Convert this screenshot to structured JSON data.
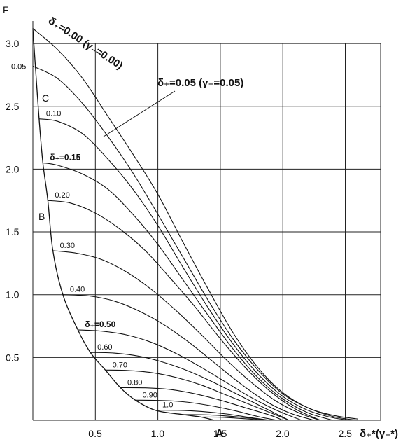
{
  "chart_data": {
    "type": "line",
    "title": "",
    "ylabel": "F",
    "xlabel": "δ₊*(γ₋*)",
    "xlim": [
      0,
      2.9
    ],
    "ylim": [
      0,
      3.2
    ],
    "xticks": [
      "0.5",
      "1.0",
      "1.5",
      "2.0",
      "2.5"
    ],
    "yticks": [
      "0.5",
      "1.0",
      "1.5",
      "2.0",
      "2.5",
      "3.0"
    ],
    "grid": true,
    "series": [
      {
        "name": "δ₊=0.00 (γ₋=0.00)",
        "label": "δ₊=0.00 (γ₋=0.00)",
        "x": [
          0,
          0.2,
          0.4,
          0.6,
          0.8,
          1.0,
          1.2,
          1.4,
          1.6,
          1.8,
          2.0,
          2.2,
          2.4,
          2.6
        ],
        "y": [
          3.12,
          2.95,
          2.72,
          2.42,
          2.12,
          1.8,
          1.42,
          1.05,
          0.7,
          0.42,
          0.22,
          0.1,
          0.04,
          0.01
        ]
      },
      {
        "name": "δ₊=0.05 (γ₋=0.05)",
        "label": "0.05",
        "x": [
          0,
          0.2,
          0.4,
          0.6,
          0.8,
          1.0,
          1.2,
          1.4,
          1.6,
          1.8,
          2.0,
          2.2,
          2.4,
          2.6
        ],
        "y": [
          2.82,
          2.72,
          2.52,
          2.26,
          1.97,
          1.64,
          1.3,
          0.96,
          0.65,
          0.4,
          0.21,
          0.1,
          0.03,
          0.0
        ]
      },
      {
        "name": "0.10",
        "label": "0.10",
        "x": [
          0.05,
          0.2,
          0.4,
          0.6,
          0.8,
          1.0,
          1.2,
          1.4,
          1.6,
          1.8,
          2.0,
          2.2,
          2.4,
          2.55
        ],
        "y": [
          2.4,
          2.38,
          2.28,
          2.08,
          1.84,
          1.55,
          1.22,
          0.9,
          0.61,
          0.37,
          0.19,
          0.08,
          0.02,
          0.0
        ]
      },
      {
        "name": "δ₊=0.15",
        "label": "δ₊=0.15",
        "x": [
          0.08,
          0.2,
          0.4,
          0.6,
          0.8,
          1.0,
          1.2,
          1.4,
          1.6,
          1.8,
          2.0,
          2.2,
          2.4
        ],
        "y": [
          2.05,
          2.03,
          1.96,
          1.84,
          1.64,
          1.4,
          1.12,
          0.84,
          0.57,
          0.34,
          0.17,
          0.06,
          0.0
        ]
      },
      {
        "name": "0.20",
        "label": "0.20",
        "x": [
          0.12,
          0.3,
          0.5,
          0.7,
          0.9,
          1.1,
          1.3,
          1.5,
          1.7,
          1.9,
          2.1,
          2.3
        ],
        "y": [
          1.75,
          1.73,
          1.65,
          1.52,
          1.35,
          1.13,
          0.9,
          0.65,
          0.42,
          0.23,
          0.09,
          0.0
        ]
      },
      {
        "name": "0.30",
        "label": "0.30",
        "x": [
          0.16,
          0.35,
          0.55,
          0.75,
          0.95,
          1.15,
          1.35,
          1.55,
          1.75,
          1.95,
          2.15,
          2.3
        ],
        "y": [
          1.35,
          1.33,
          1.28,
          1.18,
          1.04,
          0.87,
          0.68,
          0.48,
          0.3,
          0.15,
          0.05,
          0.0
        ]
      },
      {
        "name": "0.40",
        "label": "0.40",
        "x": [
          0.24,
          0.45,
          0.65,
          0.85,
          1.05,
          1.25,
          1.45,
          1.65,
          1.85,
          2.05,
          2.25
        ],
        "y": [
          1.0,
          0.99,
          0.95,
          0.87,
          0.76,
          0.62,
          0.46,
          0.3,
          0.16,
          0.06,
          0.0
        ]
      },
      {
        "name": "δ₊=0.50",
        "label": "δ₊=0.50",
        "x": [
          0.36,
          0.55,
          0.75,
          0.95,
          1.15,
          1.35,
          1.55,
          1.75,
          1.95,
          2.15
        ],
        "y": [
          0.72,
          0.71,
          0.68,
          0.62,
          0.53,
          0.42,
          0.3,
          0.18,
          0.08,
          0.0
        ]
      },
      {
        "name": "0.60",
        "label": "0.60",
        "x": [
          0.46,
          0.65,
          0.85,
          1.05,
          1.25,
          1.45,
          1.65,
          1.85,
          2.05
        ],
        "y": [
          0.54,
          0.535,
          0.51,
          0.46,
          0.39,
          0.3,
          0.2,
          0.1,
          0.0
        ]
      },
      {
        "name": "0.70",
        "label": "0.70",
        "x": [
          0.58,
          0.75,
          0.95,
          1.15,
          1.35,
          1.55,
          1.75,
          1.95,
          2.05
        ],
        "y": [
          0.4,
          0.397,
          0.38,
          0.34,
          0.28,
          0.2,
          0.12,
          0.04,
          0.0
        ]
      },
      {
        "name": "0.80",
        "label": "0.80",
        "x": [
          0.7,
          0.9,
          1.1,
          1.3,
          1.5,
          1.7,
          1.9,
          2.0
        ],
        "y": [
          0.26,
          0.258,
          0.245,
          0.21,
          0.16,
          0.1,
          0.04,
          0.0
        ]
      },
      {
        "name": "0.90",
        "label": "0.90",
        "x": [
          0.82,
          1.0,
          1.2,
          1.4,
          1.6,
          1.8,
          1.95
        ],
        "y": [
          0.16,
          0.158,
          0.148,
          0.12,
          0.08,
          0.03,
          0.0
        ]
      },
      {
        "name": "1.0",
        "label": "1.0",
        "x": [
          0.98,
          1.15,
          1.35,
          1.55,
          1.75,
          1.9
        ],
        "y": [
          0.08,
          0.079,
          0.07,
          0.05,
          0.02,
          0.0
        ]
      },
      {
        "name": "",
        "label": "",
        "x": [
          1.2,
          1.4,
          1.6,
          1.8,
          1.88
        ],
        "y": [
          0.045,
          0.043,
          0.03,
          0.01,
          0.0
        ]
      },
      {
        "name": "",
        "label": "",
        "x": [
          1.35,
          1.5,
          1.7,
          1.85
        ],
        "y": [
          0.025,
          0.024,
          0.012,
          0.0
        ]
      }
    ],
    "envelopes": [
      {
        "name": "B",
        "x": [
          0,
          0.02,
          0.05,
          0.08,
          0.12,
          0.16,
          0.24,
          0.36,
          0.46,
          0.58,
          0.7,
          0.82,
          0.98,
          1.2,
          1.35,
          1.45
        ],
        "y": [
          3.12,
          2.82,
          2.4,
          2.05,
          1.75,
          1.35,
          1.0,
          0.72,
          0.54,
          0.4,
          0.26,
          0.16,
          0.08,
          0.045,
          0.025,
          0.0
        ]
      }
    ],
    "annotations": {
      "top": "δ₊=0.00 (γ₋=0.00)",
      "callout": "δ₊=0.05 (γ₋=0.05)",
      "A": "A",
      "B": "B",
      "C": "C"
    }
  }
}
